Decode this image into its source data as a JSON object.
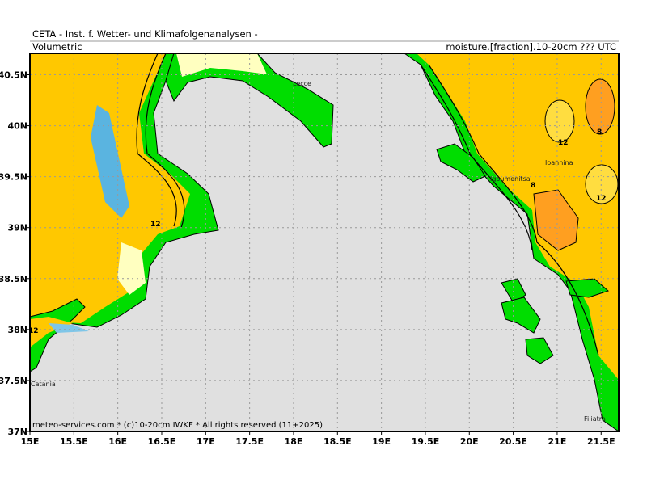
{
  "header": {
    "title": "CETA - Inst. f. Wetter- und Klimafolgenanalysen -",
    "left": "Volumetric",
    "right": "moisture.[fraction].10-20cm ??? UTC"
  },
  "map": {
    "xlim": [
      15,
      21.7
    ],
    "ylim": [
      37,
      40.71
    ],
    "xticks": [
      {
        "value": 15,
        "label": "15E"
      },
      {
        "value": 15.5,
        "label": "15.5E"
      },
      {
        "value": 16,
        "label": "16E"
      },
      {
        "value": 16.5,
        "label": "16.5E"
      },
      {
        "value": 17,
        "label": "17E"
      },
      {
        "value": 17.5,
        "label": "17.5E"
      },
      {
        "value": 18,
        "label": "18E"
      },
      {
        "value": 18.5,
        "label": "18.5E"
      },
      {
        "value": 19,
        "label": "19E"
      },
      {
        "value": 19.5,
        "label": "19.5E"
      },
      {
        "value": 20,
        "label": "20E"
      },
      {
        "value": 20.5,
        "label": "20.5E"
      },
      {
        "value": 21,
        "label": "21E"
      },
      {
        "value": 21.5,
        "label": "21.5E"
      }
    ],
    "yticks": [
      {
        "value": 37,
        "label": "37N"
      },
      {
        "value": 37.5,
        "label": "37.5N"
      },
      {
        "value": 38,
        "label": "38N"
      },
      {
        "value": 38.5,
        "label": "38.5N"
      },
      {
        "value": 39,
        "label": "39N"
      },
      {
        "value": 39.5,
        "label": "39.5N"
      },
      {
        "value": 40,
        "label": "40N"
      },
      {
        "value": 40.5,
        "label": "40.5N"
      }
    ],
    "places": [
      "Lecce",
      "Ioannina",
      "Igoumenitsa",
      "Filiatra",
      "Catania"
    ],
    "contour_labels": [
      "12",
      "12",
      "8",
      "12",
      "8",
      "12"
    ],
    "footer": "meteo-services.com * (c)10-20cm IWKF * All rights reserved (11+2025)"
  }
}
